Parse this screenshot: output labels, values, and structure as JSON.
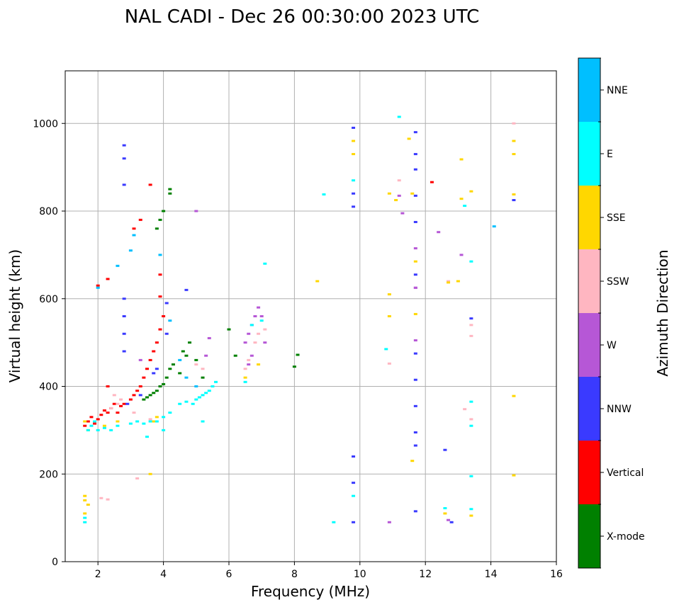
{
  "chart_data": {
    "type": "scatter",
    "title": "NAL CADI - Dec 26 00:30:00 2023 UTC",
    "xlabel": "Frequency (MHz)",
    "ylabel": "Virtual height (km)",
    "xlim": [
      1,
      16
    ],
    "ylim": [
      0,
      1120
    ],
    "xticks": [
      2,
      4,
      6,
      8,
      10,
      12,
      14,
      16
    ],
    "yticks": [
      0,
      200,
      400,
      600,
      800,
      1000
    ],
    "grid": true,
    "colorbar": {
      "label": "Azimuth Direction",
      "categories": [
        {
          "name": "X-mode",
          "color": "#008000"
        },
        {
          "name": "Vertical",
          "color": "#ff0000"
        },
        {
          "name": "NNW",
          "color": "#3a3aff"
        },
        {
          "name": "W",
          "color": "#b657d6"
        },
        {
          "name": "SSW",
          "color": "#ffb6c1"
        },
        {
          "name": "SSE",
          "color": "#ffd700"
        },
        {
          "name": "E",
          "color": "#00ffff"
        },
        {
          "name": "NNE",
          "color": "#00bfff"
        }
      ]
    },
    "series": [
      {
        "name": "X-mode",
        "points": [
          [
            3.4,
            370
          ],
          [
            3.5,
            375
          ],
          [
            3.6,
            380
          ],
          [
            3.7,
            385
          ],
          [
            3.8,
            390
          ],
          [
            3.9,
            400
          ],
          [
            4.0,
            405
          ],
          [
            4.1,
            420
          ],
          [
            4.2,
            440
          ],
          [
            4.3,
            450
          ],
          [
            3.8,
            760
          ],
          [
            3.9,
            780
          ],
          [
            4.0,
            800
          ],
          [
            4.2,
            840
          ],
          [
            4.2,
            850
          ],
          [
            4.5,
            430
          ],
          [
            4.6,
            480
          ],
          [
            4.7,
            470
          ],
          [
            4.8,
            500
          ],
          [
            5.0,
            460
          ],
          [
            5.2,
            420
          ],
          [
            6.0,
            530
          ],
          [
            6.2,
            470
          ],
          [
            8.0,
            445
          ],
          [
            8.1,
            472
          ]
        ]
      },
      {
        "name": "Vertical",
        "points": [
          [
            1.6,
            310
          ],
          [
            1.7,
            320
          ],
          [
            1.8,
            330
          ],
          [
            1.9,
            315
          ],
          [
            2.0,
            325
          ],
          [
            2.1,
            335
          ],
          [
            2.2,
            345
          ],
          [
            2.3,
            340
          ],
          [
            2.4,
            350
          ],
          [
            2.5,
            360
          ],
          [
            2.6,
            340
          ],
          [
            2.7,
            355
          ],
          [
            2.8,
            360
          ],
          [
            2.3,
            400
          ],
          [
            3.0,
            370
          ],
          [
            3.1,
            380
          ],
          [
            3.2,
            390
          ],
          [
            3.3,
            400
          ],
          [
            3.4,
            420
          ],
          [
            3.5,
            440
          ],
          [
            3.6,
            460
          ],
          [
            3.7,
            480
          ],
          [
            3.8,
            500
          ],
          [
            3.9,
            530
          ],
          [
            4.0,
            560
          ],
          [
            3.9,
            605
          ],
          [
            3.9,
            655
          ],
          [
            3.6,
            860
          ],
          [
            3.1,
            760
          ],
          [
            3.3,
            780
          ],
          [
            2.0,
            630
          ],
          [
            2.3,
            645
          ],
          [
            12.2,
            866
          ]
        ]
      },
      {
        "name": "NNW",
        "points": [
          [
            2.8,
            920
          ],
          [
            2.8,
            950
          ],
          [
            2.8,
            860
          ],
          [
            2.8,
            600
          ],
          [
            2.8,
            560
          ],
          [
            2.8,
            520
          ],
          [
            2.8,
            480
          ],
          [
            2.9,
            360
          ],
          [
            3.3,
            380
          ],
          [
            3.7,
            430
          ],
          [
            3.8,
            440
          ],
          [
            4.1,
            590
          ],
          [
            4.1,
            520
          ],
          [
            4.7,
            620
          ],
          [
            9.8,
            990
          ],
          [
            9.8,
            840
          ],
          [
            9.8,
            810
          ],
          [
            9.8,
            240
          ],
          [
            9.8,
            180
          ],
          [
            9.8,
            90
          ],
          [
            11.7,
            980
          ],
          [
            11.7,
            930
          ],
          [
            11.7,
            895
          ],
          [
            11.7,
            835
          ],
          [
            11.7,
            775
          ],
          [
            11.7,
            655
          ],
          [
            11.7,
            475
          ],
          [
            11.7,
            415
          ],
          [
            11.7,
            355
          ],
          [
            11.7,
            295
          ],
          [
            11.7,
            265
          ],
          [
            11.7,
            115
          ],
          [
            12.6,
            255
          ],
          [
            12.8,
            90
          ],
          [
            13.4,
            555
          ],
          [
            14.7,
            825
          ]
        ]
      },
      {
        "name": "W",
        "points": [
          [
            6.5,
            500
          ],
          [
            6.6,
            520
          ],
          [
            6.7,
            540
          ],
          [
            6.8,
            560
          ],
          [
            6.9,
            580
          ],
          [
            7.0,
            560
          ],
          [
            7.1,
            500
          ],
          [
            6.6,
            450
          ],
          [
            6.7,
            470
          ],
          [
            5.4,
            510
          ],
          [
            5.3,
            470
          ],
          [
            3.3,
            460
          ],
          [
            5.0,
            800
          ],
          [
            11.3,
            795
          ],
          [
            11.2,
            835
          ],
          [
            11.7,
            505
          ],
          [
            11.7,
            625
          ],
          [
            11.7,
            715
          ],
          [
            11.7,
            625
          ],
          [
            12.4,
            752
          ],
          [
            13.1,
            700
          ],
          [
            10.9,
            90
          ],
          [
            12.7,
            95
          ]
        ]
      },
      {
        "name": "SSW",
        "points": [
          [
            2.5,
            380
          ],
          [
            2.6,
            360
          ],
          [
            2.7,
            370
          ],
          [
            2.4,
            350
          ],
          [
            3.1,
            340
          ],
          [
            3.6,
            325
          ],
          [
            5.0,
            450
          ],
          [
            5.2,
            440
          ],
          [
            6.5,
            440
          ],
          [
            6.6,
            460
          ],
          [
            6.8,
            500
          ],
          [
            6.9,
            520
          ],
          [
            7.1,
            530
          ],
          [
            2.1,
            145
          ],
          [
            2.3,
            142
          ],
          [
            3.2,
            190
          ],
          [
            13.2,
            348
          ],
          [
            13.4,
            325
          ],
          [
            13.4,
            515
          ],
          [
            13.4,
            540
          ],
          [
            14.7,
            1000
          ],
          [
            12.7,
            640
          ],
          [
            10.9,
            452
          ],
          [
            11.2,
            870
          ]
        ]
      },
      {
        "name": "SSE",
        "points": [
          [
            1.6,
            150
          ],
          [
            1.6,
            140
          ],
          [
            1.7,
            130
          ],
          [
            1.6,
            110
          ],
          [
            1.6,
            320
          ],
          [
            1.7,
            300
          ],
          [
            2.2,
            310
          ],
          [
            2.6,
            320
          ],
          [
            3.7,
            320
          ],
          [
            3.8,
            330
          ],
          [
            3.6,
            200
          ],
          [
            6.5,
            420
          ],
          [
            6.9,
            450
          ],
          [
            8.7,
            640
          ],
          [
            9.8,
            960
          ],
          [
            9.8,
            930
          ],
          [
            10.9,
            840
          ],
          [
            10.9,
            610
          ],
          [
            10.9,
            560
          ],
          [
            11.1,
            825
          ],
          [
            11.5,
            965
          ],
          [
            11.6,
            840
          ],
          [
            11.7,
            685
          ],
          [
            11.7,
            565
          ],
          [
            11.6,
            230
          ],
          [
            12.7,
            637
          ],
          [
            13.0,
            640
          ],
          [
            13.1,
            918
          ],
          [
            13.1,
            828
          ],
          [
            13.4,
            845
          ],
          [
            13.4,
            105
          ],
          [
            14.7,
            960
          ],
          [
            14.7,
            930
          ],
          [
            14.7,
            838
          ],
          [
            14.7,
            378
          ],
          [
            14.7,
            197
          ],
          [
            12.6,
            110
          ]
        ]
      },
      {
        "name": "E",
        "points": [
          [
            1.6,
            90
          ],
          [
            1.6,
            100
          ],
          [
            1.7,
            300
          ],
          [
            1.8,
            310
          ],
          [
            1.9,
            320
          ],
          [
            2.0,
            300
          ],
          [
            2.2,
            305
          ],
          [
            2.4,
            300
          ],
          [
            2.6,
            310
          ],
          [
            3.0,
            315
          ],
          [
            3.2,
            320
          ],
          [
            3.4,
            315
          ],
          [
            3.6,
            320
          ],
          [
            3.8,
            320
          ],
          [
            4.0,
            330
          ],
          [
            4.2,
            340
          ],
          [
            4.5,
            360
          ],
          [
            4.7,
            365
          ],
          [
            4.9,
            360
          ],
          [
            5.0,
            370
          ],
          [
            5.1,
            375
          ],
          [
            5.2,
            380
          ],
          [
            5.3,
            385
          ],
          [
            5.4,
            390
          ],
          [
            5.5,
            400
          ],
          [
            5.6,
            410
          ],
          [
            5.2,
            320
          ],
          [
            4.0,
            300
          ],
          [
            3.5,
            285
          ],
          [
            6.5,
            410
          ],
          [
            6.7,
            540
          ],
          [
            7.0,
            550
          ],
          [
            7.1,
            680
          ],
          [
            8.9,
            838
          ],
          [
            9.8,
            870
          ],
          [
            9.8,
            150
          ],
          [
            9.2,
            90
          ],
          [
            10.8,
            485
          ],
          [
            11.2,
            1015
          ],
          [
            13.2,
            812
          ],
          [
            13.4,
            685
          ],
          [
            13.4,
            365
          ],
          [
            13.4,
            310
          ],
          [
            13.4,
            195
          ],
          [
            13.4,
            120
          ],
          [
            12.6,
            122
          ]
        ]
      },
      {
        "name": "NNE",
        "points": [
          [
            2.0,
            625
          ],
          [
            2.6,
            675
          ],
          [
            3.0,
            710
          ],
          [
            3.1,
            745
          ],
          [
            3.9,
            700
          ],
          [
            4.2,
            550
          ],
          [
            4.5,
            460
          ],
          [
            4.7,
            420
          ],
          [
            5.0,
            400
          ],
          [
            14.1,
            765
          ]
        ]
      }
    ]
  }
}
